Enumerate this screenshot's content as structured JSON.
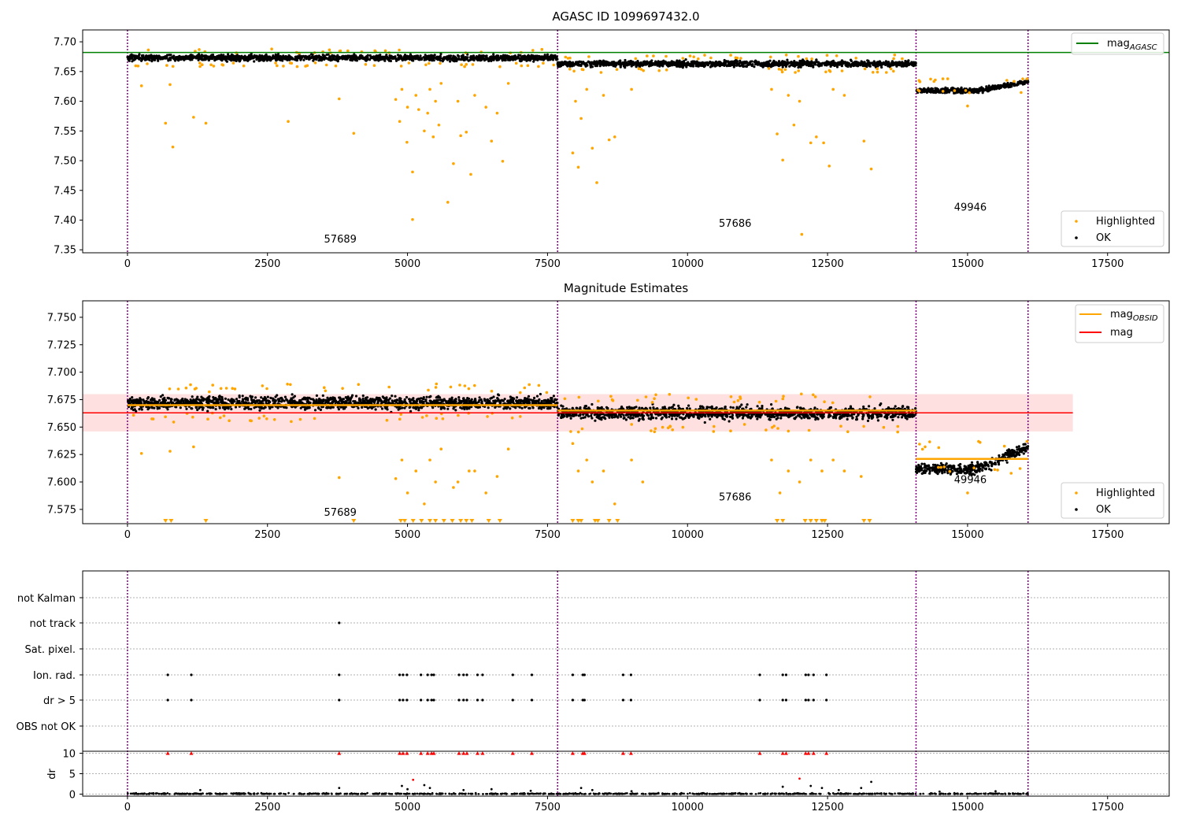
{
  "colors": {
    "highlighted": "#ffa500",
    "ok": "#000000",
    "agasc_line": "#008000",
    "obsid_line": "#ffa500",
    "mag_line": "#ff0000",
    "band": "#ff0000",
    "boundary": "#800080",
    "dr_flag": "#ff0000"
  },
  "chart_data": [
    {
      "type": "scatter",
      "title": "AGASC ID 1099697432.0",
      "xlim": [
        -800,
        18600
      ],
      "ylim": [
        7.345,
        7.72
      ],
      "xticks": [
        0,
        2500,
        5000,
        7500,
        10000,
        12500,
        15000,
        17500
      ],
      "xtick_labels": [
        "0",
        "2500",
        "5000",
        "7500",
        "10000",
        "12500",
        "15000",
        "17500"
      ],
      "yticks": [
        7.35,
        7.4,
        7.45,
        7.5,
        7.55,
        7.6,
        7.65,
        7.7
      ],
      "ytick_labels": [
        "7.35",
        "7.40",
        "7.45",
        "7.50",
        "7.55",
        "7.60",
        "7.65",
        "7.70"
      ],
      "boundaries": [
        0,
        7680,
        14080,
        16080
      ],
      "segments": [
        {
          "x0": 0,
          "x1": 7680,
          "mean": 7.673,
          "spread": 0.006,
          "label": "57689",
          "label_x": 3800,
          "label_y": 7.362
        },
        {
          "x0": 7680,
          "x1": 14080,
          "mean": 7.663,
          "spread": 0.006,
          "label": "57686",
          "label_x": 10850,
          "label_y": 7.389
        },
        {
          "x0": 14080,
          "x1": 16080,
          "mean_start": 7.618,
          "mean_end": 7.633,
          "spread": 0.005,
          "label": "49946",
          "label_x": 15050,
          "label_y": 7.416
        }
      ],
      "highlighted_points": [
        [
          250,
          7.626
        ],
        [
          680,
          7.563
        ],
        [
          760,
          7.628
        ],
        [
          810,
          7.523
        ],
        [
          1180,
          7.573
        ],
        [
          1400,
          7.563
        ],
        [
          2870,
          7.566
        ],
        [
          3780,
          7.604
        ],
        [
          4040,
          7.546
        ],
        [
          4790,
          7.603
        ],
        [
          4860,
          7.566
        ],
        [
          4990,
          7.531
        ],
        [
          5090,
          7.481
        ],
        [
          5090,
          7.401
        ],
        [
          5200,
          7.586
        ],
        [
          5300,
          7.55
        ],
        [
          5360,
          7.58
        ],
        [
          5460,
          7.54
        ],
        [
          5560,
          7.56
        ],
        [
          5720,
          7.43
        ],
        [
          5820,
          7.495
        ],
        [
          5950,
          7.542
        ],
        [
          6050,
          7.548
        ],
        [
          6130,
          7.477
        ],
        [
          6500,
          7.533
        ],
        [
          6700,
          7.499
        ],
        [
          4900,
          7.62
        ],
        [
          5000,
          7.59
        ],
        [
          5150,
          7.61
        ],
        [
          5400,
          7.62
        ],
        [
          5500,
          7.6
        ],
        [
          5600,
          7.63
        ],
        [
          5900,
          7.6
        ],
        [
          6200,
          7.61
        ],
        [
          6400,
          7.59
        ],
        [
          6600,
          7.58
        ],
        [
          6800,
          7.63
        ],
        [
          7950,
          7.513
        ],
        [
          8050,
          7.489
        ],
        [
          8100,
          7.571
        ],
        [
          8300,
          7.521
        ],
        [
          8380,
          7.463
        ],
        [
          8600,
          7.535
        ],
        [
          8700,
          7.54
        ],
        [
          8000,
          7.6
        ],
        [
          8200,
          7.62
        ],
        [
          8500,
          7.61
        ],
        [
          9000,
          7.62
        ],
        [
          11600,
          7.545
        ],
        [
          11700,
          7.501
        ],
        [
          11900,
          7.56
        ],
        [
          12040,
          7.376
        ],
        [
          12200,
          7.53
        ],
        [
          12300,
          7.54
        ],
        [
          12430,
          7.53
        ],
        [
          12530,
          7.491
        ],
        [
          13150,
          7.533
        ],
        [
          13280,
          7.486
        ],
        [
          11500,
          7.62
        ],
        [
          11800,
          7.61
        ],
        [
          12000,
          7.6
        ],
        [
          12600,
          7.62
        ],
        [
          12800,
          7.61
        ],
        [
          15000,
          7.592
        ]
      ],
      "legend": [
        {
          "name": "Highlighted"
        },
        {
          "name": "OK"
        }
      ],
      "lines": [
        {
          "name_main": "mag",
          "name_sub": "AGASC",
          "y": 7.682,
          "x0": -800,
          "x1": 18600
        }
      ]
    },
    {
      "type": "scatter",
      "title": "Magnitude Estimates",
      "xlim": [
        -800,
        18600
      ],
      "ylim": [
        7.562,
        7.765
      ],
      "xticks": [
        0,
        2500,
        5000,
        7500,
        10000,
        12500,
        15000,
        17500
      ],
      "xtick_labels": [
        "0",
        "2500",
        "5000",
        "7500",
        "10000",
        "12500",
        "15000",
        "17500"
      ],
      "yticks": [
        7.575,
        7.6,
        7.625,
        7.65,
        7.675,
        7.7,
        7.725,
        7.75
      ],
      "ytick_labels": [
        "7.575",
        "7.600",
        "7.625",
        "7.650",
        "7.675",
        "7.700",
        "7.725",
        "7.750"
      ],
      "boundaries": [
        0,
        7680,
        14080,
        16080
      ],
      "band": [
        7.646,
        7.68
      ],
      "band_x": [
        -800,
        16880
      ],
      "mag_line": {
        "y": 7.663,
        "x0": -800,
        "x1": 16880
      },
      "obsid_lines": [
        {
          "x0": 0,
          "x1": 7680,
          "y": 7.67
        },
        {
          "x0": 7680,
          "x1": 14080,
          "y": 7.665
        },
        {
          "x0": 14080,
          "x1": 16080,
          "y": 7.621
        }
      ],
      "segments": [
        {
          "x0": 0,
          "x1": 7680,
          "mean": 7.672,
          "spread": 0.007,
          "label": "57689",
          "label_x": 3800,
          "label_y": 7.569
        },
        {
          "x0": 7680,
          "x1": 14080,
          "mean": 7.663,
          "spread": 0.007,
          "label": "57686",
          "label_x": 10850,
          "label_y": 7.583
        },
        {
          "x0": 14080,
          "x1": 16080,
          "mean_start": 7.612,
          "mean_end": 7.632,
          "spread": 0.006,
          "label": "49946",
          "label_x": 15050,
          "label_y": 7.599
        }
      ],
      "highlighted_points": [
        [
          250,
          7.626
        ],
        [
          760,
          7.628
        ],
        [
          1180,
          7.632
        ],
        [
          3780,
          7.604
        ],
        [
          4790,
          7.603
        ],
        [
          4900,
          7.62
        ],
        [
          5000,
          7.59
        ],
        [
          5150,
          7.61
        ],
        [
          5300,
          7.58
        ],
        [
          5400,
          7.62
        ],
        [
          5500,
          7.6
        ],
        [
          5600,
          7.63
        ],
        [
          5820,
          7.595
        ],
        [
          5900,
          7.6
        ],
        [
          6100,
          7.61
        ],
        [
          6200,
          7.61
        ],
        [
          6400,
          7.59
        ],
        [
          6600,
          7.605
        ],
        [
          6800,
          7.63
        ],
        [
          7950,
          7.635
        ],
        [
          8050,
          7.61
        ],
        [
          8200,
          7.62
        ],
        [
          8300,
          7.6
        ],
        [
          8500,
          7.61
        ],
        [
          8700,
          7.58
        ],
        [
          9000,
          7.62
        ],
        [
          9200,
          7.6
        ],
        [
          11500,
          7.62
        ],
        [
          11650,
          7.59
        ],
        [
          11800,
          7.61
        ],
        [
          12000,
          7.6
        ],
        [
          12200,
          7.62
        ],
        [
          12400,
          7.61
        ],
        [
          12600,
          7.62
        ],
        [
          12800,
          7.61
        ],
        [
          13100,
          7.605
        ],
        [
          15000,
          7.59
        ]
      ],
      "clipped_x": [
        680,
        780,
        1400,
        4040,
        4880,
        4950,
        5100,
        5250,
        5400,
        5500,
        5650,
        5800,
        5950,
        6050,
        6150,
        6450,
        6650,
        7950,
        8050,
        8100,
        8350,
        8400,
        8600,
        8750,
        11600,
        11700,
        12100,
        12200,
        12300,
        12400,
        12450,
        13150,
        13250
      ],
      "legend": [
        {
          "name": "Highlighted"
        },
        {
          "name": "OK"
        }
      ],
      "line_legend": [
        {
          "name_main": "mag",
          "name_sub": "OBSID"
        },
        {
          "name_main": "mag",
          "name_sub": ""
        }
      ]
    },
    {
      "type": "scatter",
      "title": "",
      "xlim": [
        -800,
        18600
      ],
      "xticks": [
        0,
        2500,
        5000,
        7500,
        10000,
        12500,
        15000,
        17500
      ],
      "xtick_labels": [
        "0",
        "2500",
        "5000",
        "7500",
        "10000",
        "12500",
        "15000",
        "17500"
      ],
      "boundaries": [
        0,
        7680,
        14080,
        16080
      ],
      "flag_rows": [
        "not Kalman",
        "not track",
        "Sat. pixel.",
        "Ion. rad.",
        "dr > 5",
        "OBS not OK"
      ],
      "flag_points": {
        "not track": [
          3780
        ],
        "Ion. rad.": [
          720,
          1140,
          3780,
          4860,
          4920,
          4990,
          5240,
          5360,
          5430,
          5470,
          5920,
          6000,
          6060,
          6250,
          6340,
          6880,
          7220,
          7950,
          8130,
          8160,
          8850,
          8990,
          11290,
          11700,
          11760,
          12110,
          12160,
          12250,
          12480
        ],
        "dr > 5": [
          720,
          1140,
          3780,
          4860,
          4920,
          4990,
          5240,
          5360,
          5430,
          5470,
          5920,
          6000,
          6060,
          6250,
          6340,
          6880,
          7220,
          7950,
          8130,
          8160,
          8850,
          8990,
          11290,
          11700,
          11760,
          12110,
          12160,
          12250,
          12480
        ]
      },
      "dr_ylabel": "dr",
      "dr_ylim": [
        -0.5,
        10.5
      ],
      "dr_yticks": [
        0,
        5,
        10
      ],
      "dr_ytick_labels": [
        "0",
        "5",
        "10"
      ],
      "dr_capped_x": [
        720,
        1140,
        3780,
        4860,
        4920,
        4990,
        5240,
        5360,
        5430,
        5470,
        5920,
        6000,
        6060,
        6250,
        6340,
        6880,
        7220,
        7950,
        8130,
        8160,
        8850,
        8990,
        11290,
        11700,
        11760,
        12110,
        12160,
        12250,
        12480
      ],
      "dr_spikes": [
        [
          1300,
          1.0
        ],
        [
          3780,
          1.5
        ],
        [
          4900,
          2.0
        ],
        [
          5000,
          1.2
        ],
        [
          5100,
          3.5
        ],
        [
          5300,
          2.2
        ],
        [
          5400,
          1.5
        ],
        [
          6000,
          1.0
        ],
        [
          6500,
          1.2
        ],
        [
          7200,
          0.8
        ],
        [
          8100,
          1.5
        ],
        [
          8300,
          1.0
        ],
        [
          9000,
          0.7
        ],
        [
          11700,
          1.8
        ],
        [
          12000,
          3.8
        ],
        [
          12200,
          2.0
        ],
        [
          12400,
          1.5
        ],
        [
          12700,
          1.0
        ],
        [
          13100,
          1.5
        ],
        [
          13280,
          3.0
        ],
        [
          14500,
          0.6
        ],
        [
          15500,
          0.7
        ]
      ]
    }
  ]
}
